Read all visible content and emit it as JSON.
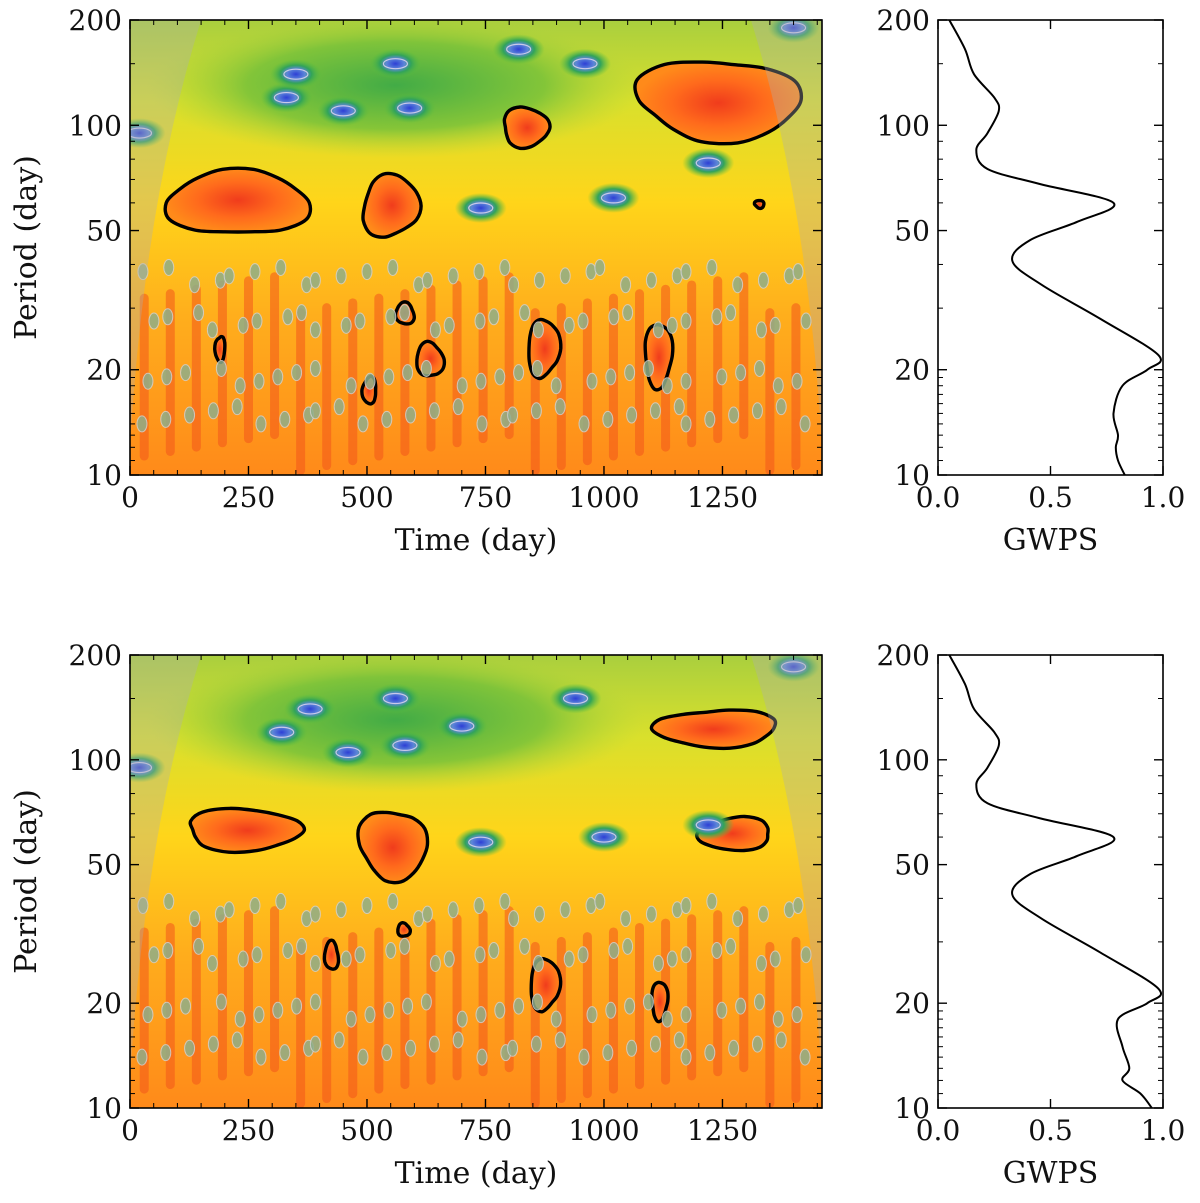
{
  "chart_data": [
    {
      "id": "top-wavelet",
      "type": "heatmap",
      "xlabel": "Time (day)",
      "ylabel": "Period (day)",
      "xlim": [
        0,
        1460
      ],
      "ylim": [
        10,
        200
      ],
      "yscale": "log",
      "x_ticks": [
        0,
        250,
        500,
        750,
        1000,
        1250
      ],
      "x_tick_labels": [
        "0",
        "250",
        "500",
        "750",
        "1000",
        "1250"
      ],
      "y_ticks": [
        10,
        20,
        50,
        100,
        200
      ],
      "y_tick_labels": [
        "10",
        "20",
        "50",
        "100",
        "200"
      ],
      "high_power_regions": [
        {
          "t": [
            85,
            370
          ],
          "p": [
            48,
            75
          ]
        },
        {
          "t": [
            490,
            610
          ],
          "p": [
            48,
            72
          ]
        },
        {
          "t": [
            785,
            885
          ],
          "p": [
            87,
            112
          ]
        },
        {
          "t": [
            1075,
            1410
          ],
          "p": [
            90,
            155
          ]
        },
        {
          "t": [
            180,
            200
          ],
          "p": [
            21,
            25
          ]
        },
        {
          "t": [
            490,
            520
          ],
          "p": [
            16,
            19
          ]
        },
        {
          "t": [
            560,
            600
          ],
          "p": [
            27,
            31
          ]
        },
        {
          "t": [
            605,
            660
          ],
          "p": [
            19,
            24
          ]
        },
        {
          "t": [
            840,
            905
          ],
          "p": [
            19,
            28
          ]
        },
        {
          "t": [
            1085,
            1145
          ],
          "p": [
            18,
            27
          ]
        },
        {
          "t": [
            1318,
            1338
          ],
          "p": [
            58,
            61
          ]
        }
      ],
      "low_power_spots": [
        {
          "t": 330,
          "p": 120
        },
        {
          "t": 560,
          "p": 150
        },
        {
          "t": 590,
          "p": 112
        },
        {
          "t": 960,
          "p": 150
        },
        {
          "t": 1220,
          "p": 78
        },
        {
          "t": 1020,
          "p": 62
        },
        {
          "t": 740,
          "p": 58
        },
        {
          "t": 450,
          "p": 110
        },
        {
          "t": 20,
          "p": 95
        },
        {
          "t": 1400,
          "p": 190
        },
        {
          "t": 820,
          "p": 165
        },
        {
          "t": 350,
          "p": 140
        }
      ]
    },
    {
      "id": "top-gwps",
      "type": "line",
      "xlabel": "GWPS",
      "xlim": [
        0.0,
        1.0
      ],
      "ylim": [
        10,
        200
      ],
      "yscale": "log",
      "x_ticks": [
        0.0,
        0.5,
        1.0
      ],
      "x_tick_labels": [
        "0.0",
        "0.5",
        "1.0"
      ],
      "y_ticks": [
        10,
        20,
        50,
        100,
        200
      ],
      "y_tick_labels": [
        "10",
        "20",
        "50",
        "100",
        "200"
      ],
      "series": [
        {
          "name": "GWPS",
          "gwps": [
            0.05,
            0.12,
            0.16,
            0.25,
            0.27,
            0.22,
            0.17,
            0.22,
            0.45,
            0.78,
            0.62,
            0.41,
            0.33,
            0.46,
            0.72,
            0.98,
            0.93,
            0.82,
            0.78,
            0.8,
            0.79,
            0.8,
            0.83
          ],
          "period": [
            200,
            165,
            140,
            120,
            110,
            95,
            85,
            75,
            68,
            60,
            53,
            47,
            41,
            35,
            28,
            22,
            20,
            18,
            15,
            13,
            12,
            11,
            10
          ]
        }
      ]
    },
    {
      "id": "bottom-wavelet",
      "type": "heatmap",
      "xlabel": "Time (day)",
      "ylabel": "Period (day)",
      "xlim": [
        0,
        1460
      ],
      "ylim": [
        10,
        200
      ],
      "yscale": "log",
      "x_ticks": [
        0,
        250,
        500,
        750,
        1000,
        1250
      ],
      "x_tick_labels": [
        "0",
        "250",
        "500",
        "750",
        "1000",
        "1250"
      ],
      "y_ticks": [
        10,
        20,
        50,
        100,
        200
      ],
      "y_tick_labels": [
        "10",
        "20",
        "50",
        "100",
        "200"
      ],
      "high_power_regions": [
        {
          "t": [
            115,
            365
          ],
          "p": [
            55,
            72
          ]
        },
        {
          "t": [
            485,
            625
          ],
          "p": [
            45,
            72
          ]
        },
        {
          "t": [
            1115,
            1360
          ],
          "p": [
            108,
            140
          ]
        },
        {
          "t": [
            1200,
            1355
          ],
          "p": [
            55,
            68
          ]
        },
        {
          "t": [
            410,
            440
          ],
          "p": [
            25,
            30
          ]
        },
        {
          "t": [
            565,
            590
          ],
          "p": [
            31,
            34
          ]
        },
        {
          "t": [
            845,
            905
          ],
          "p": [
            19,
            27
          ]
        },
        {
          "t": [
            1100,
            1135
          ],
          "p": [
            18,
            23
          ]
        }
      ],
      "low_power_spots": [
        {
          "t": 320,
          "p": 120
        },
        {
          "t": 560,
          "p": 150
        },
        {
          "t": 580,
          "p": 110
        },
        {
          "t": 940,
          "p": 150
        },
        {
          "t": 1220,
          "p": 65
        },
        {
          "t": 1000,
          "p": 60
        },
        {
          "t": 740,
          "p": 58
        },
        {
          "t": 460,
          "p": 105
        },
        {
          "t": 20,
          "p": 95
        },
        {
          "t": 1400,
          "p": 185
        },
        {
          "t": 700,
          "p": 125
        },
        {
          "t": 380,
          "p": 140
        }
      ]
    },
    {
      "id": "bottom-gwps",
      "type": "line",
      "xlabel": "GWPS",
      "xlim": [
        0.0,
        1.0
      ],
      "ylim": [
        10,
        200
      ],
      "yscale": "log",
      "x_ticks": [
        0.0,
        0.5,
        1.0
      ],
      "x_tick_labels": [
        "0.0",
        "0.5",
        "1.0"
      ],
      "y_ticks": [
        10,
        20,
        50,
        100,
        200
      ],
      "y_tick_labels": [
        "10",
        "20",
        "50",
        "100",
        "200"
      ],
      "series": [
        {
          "name": "GWPS",
          "gwps": [
            0.05,
            0.12,
            0.16,
            0.25,
            0.27,
            0.22,
            0.17,
            0.22,
            0.45,
            0.78,
            0.62,
            0.41,
            0.33,
            0.46,
            0.72,
            0.98,
            0.93,
            0.8,
            0.82,
            0.85,
            0.82,
            0.9,
            0.95
          ],
          "period": [
            200,
            165,
            140,
            120,
            110,
            95,
            85,
            75,
            68,
            60,
            53,
            47,
            41,
            35,
            28,
            22,
            20,
            18,
            15,
            13,
            12,
            11,
            10
          ]
        }
      ]
    }
  ]
}
